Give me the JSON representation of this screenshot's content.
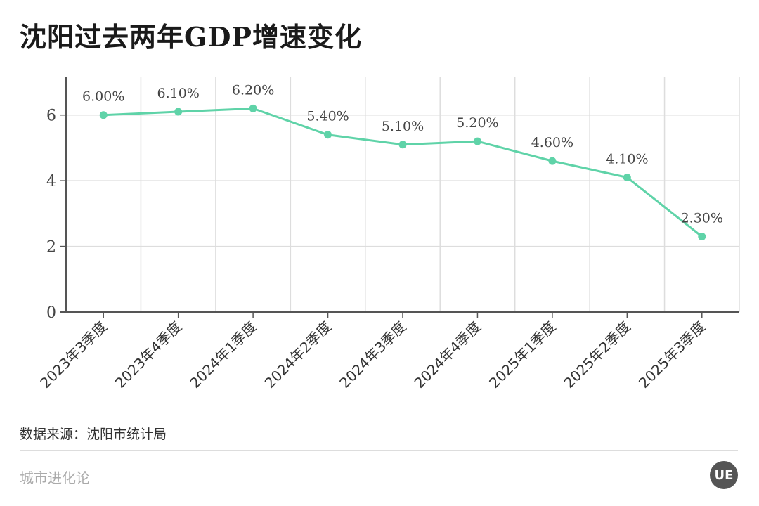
{
  "title": "沈阳过去两年GDP增速变化",
  "source": "数据来源：沈阳市统计局",
  "brand": "城市进化论",
  "logo_text": "UE",
  "chart_data": {
    "type": "line",
    "title": "沈阳过去两年GDP增速变化",
    "xlabel": "",
    "ylabel": "",
    "categories": [
      "2023年3季度",
      "2023年4季度",
      "2024年1季度",
      "2024年2季度",
      "2024年3季度",
      "2024年4季度",
      "2025年1季度",
      "2025年2季度",
      "2025年3季度"
    ],
    "values": [
      6.0,
      6.1,
      6.2,
      5.4,
      5.1,
      5.2,
      4.6,
      4.1,
      2.3
    ],
    "data_labels": [
      "6.00%",
      "6.10%",
      "6.20%",
      "5.40%",
      "5.10%",
      "5.20%",
      "4.60%",
      "4.10%",
      "2.30%"
    ],
    "yticks": [
      0,
      2,
      4,
      6
    ],
    "ylim": [
      0,
      7.15
    ],
    "grid": true,
    "line_color": "#5fd3a8"
  }
}
